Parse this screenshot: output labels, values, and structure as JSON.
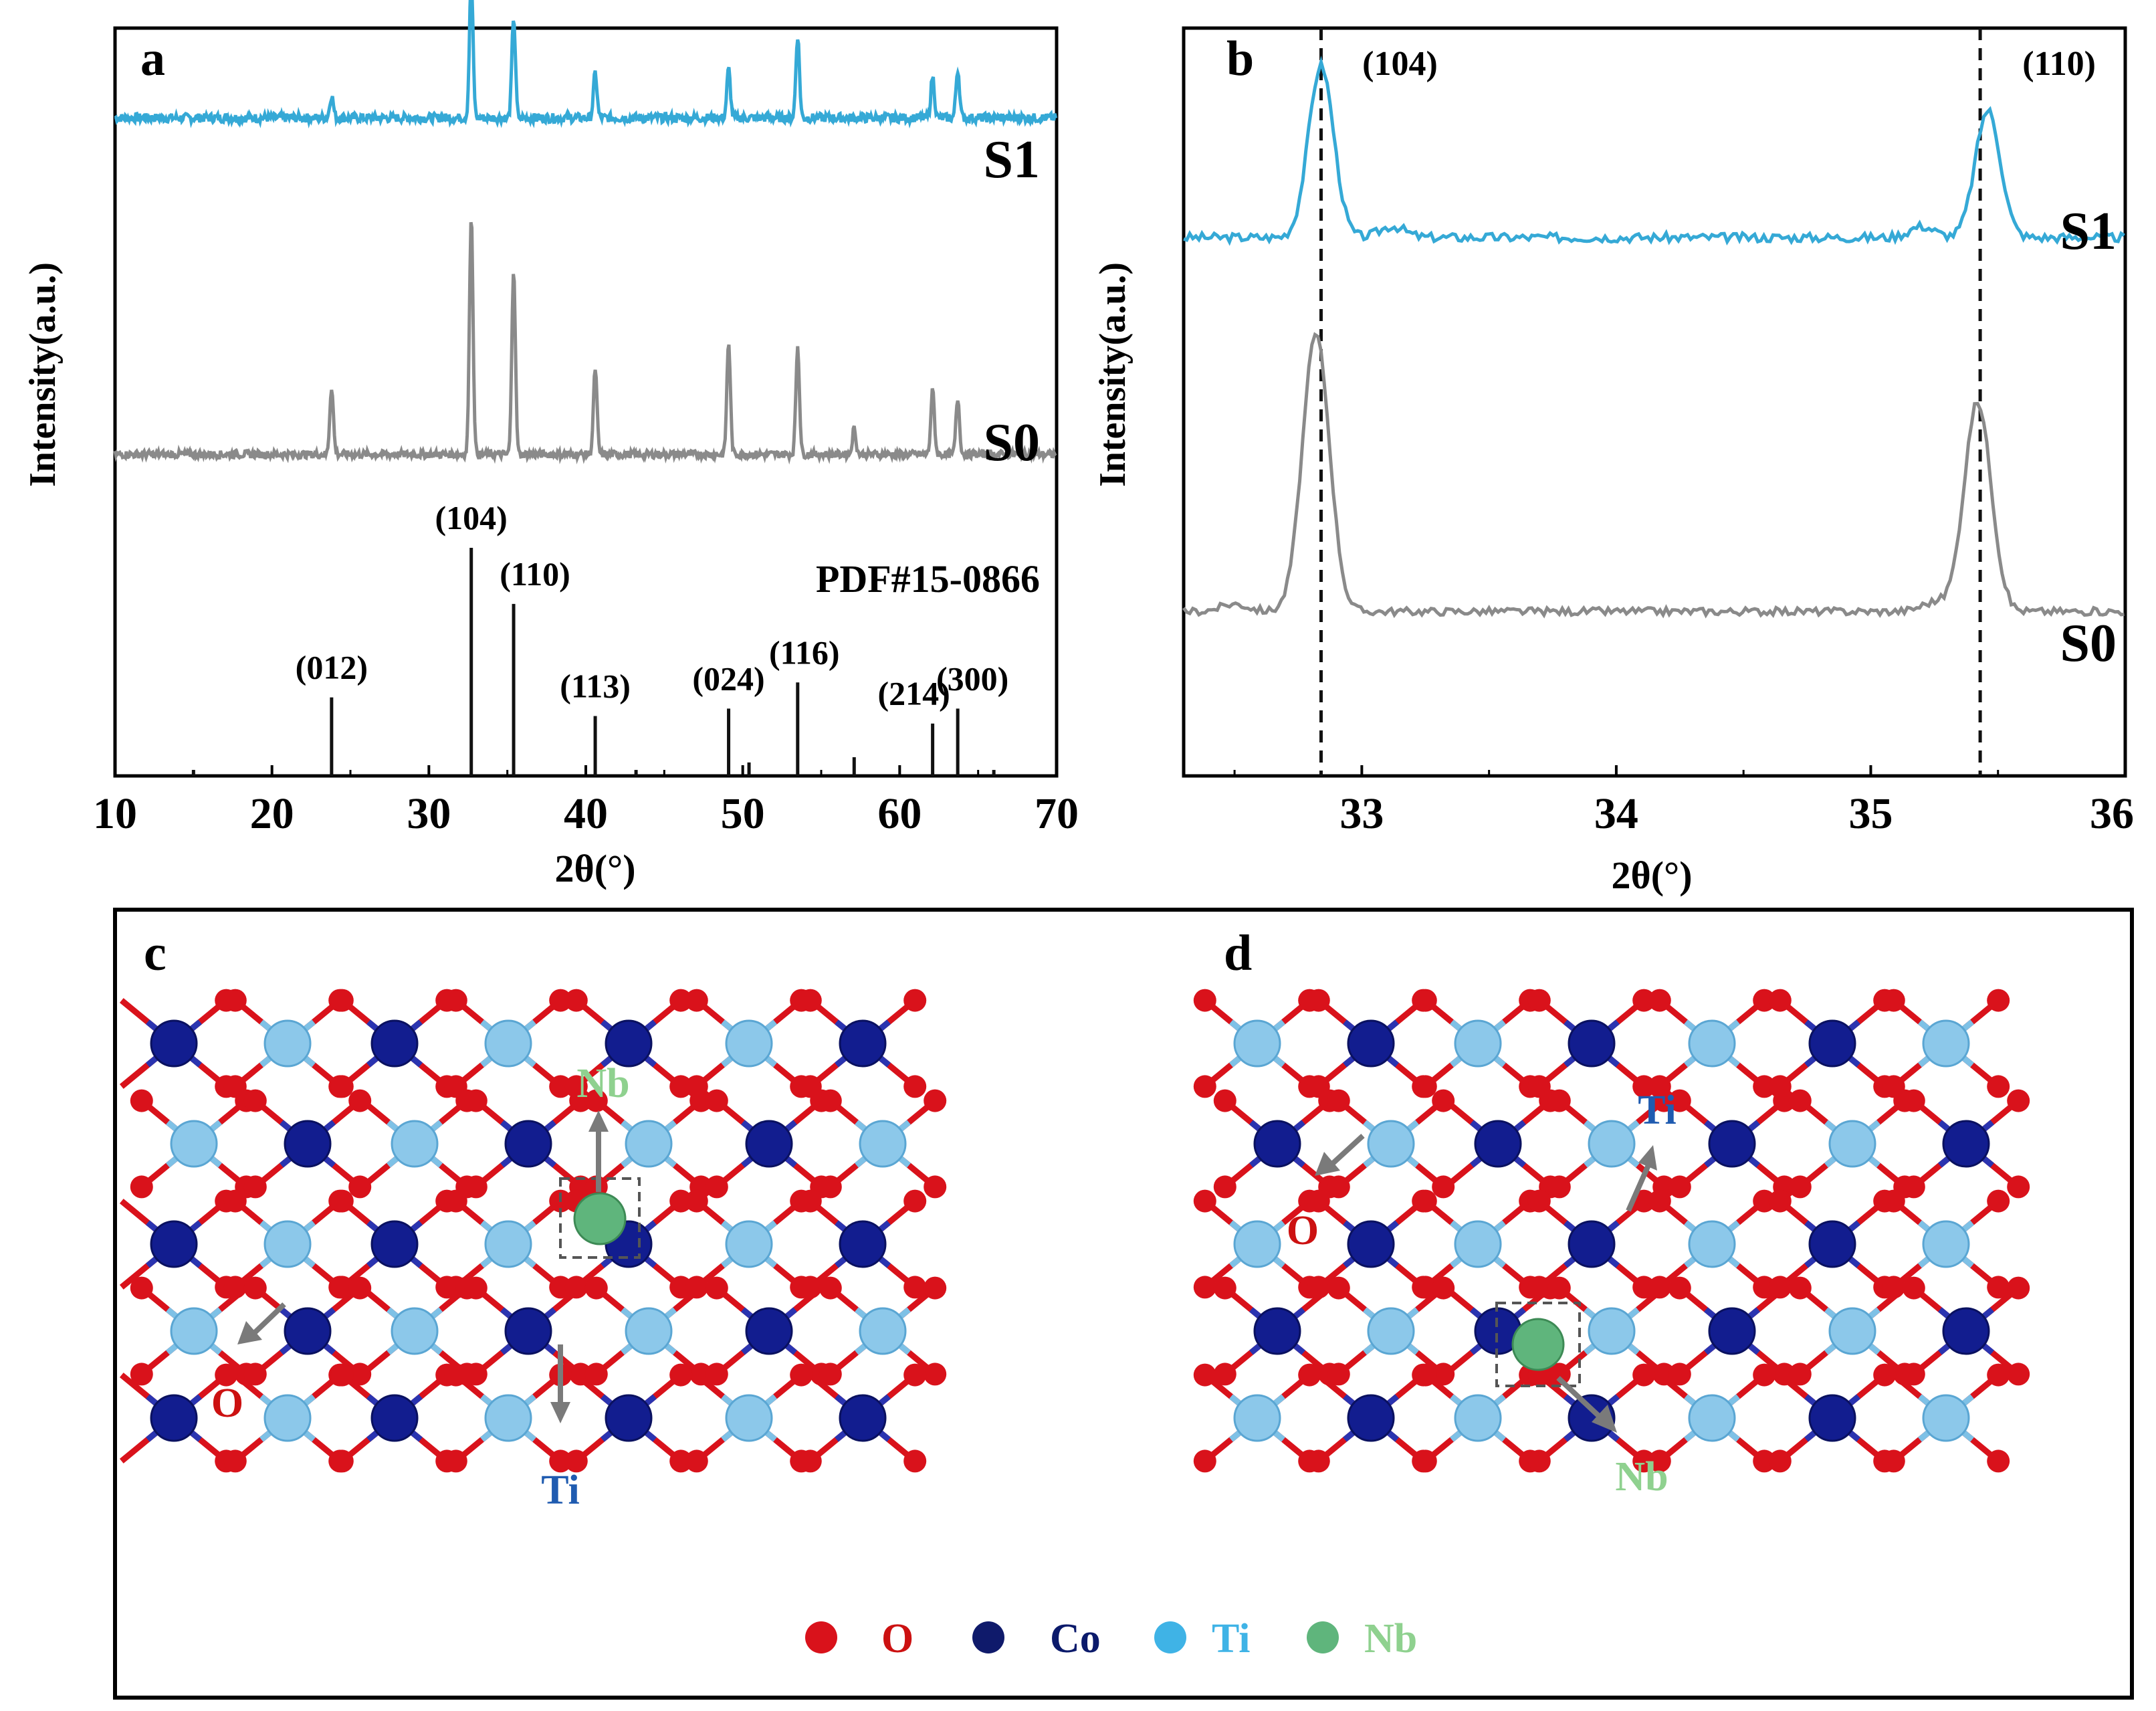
{
  "colors": {
    "s1": "#35a9d6",
    "s0": "#8a8a8a",
    "ref": "#111111",
    "oxygen": "#d9121b",
    "cobalt": "#0f1a8c",
    "titanium": "#7ec1e6",
    "niobium": "#5fb57c",
    "arrow": "#7a7a7a",
    "nb_text": "#8fd18f",
    "ti_text": "#1f5bb0",
    "o_text": "#cc1111",
    "legend_co_text": "#0b1a6b",
    "legend_ti_text": "#3fb3e6",
    "legend_nb_text": "#8fd18f"
  },
  "panels": {
    "a": {
      "label": "a"
    },
    "b": {
      "label": "b"
    },
    "c": {
      "label": "c",
      "annotations": {
        "nb": "Nb",
        "ti": "Ti",
        "o": "O"
      }
    },
    "d": {
      "label": "d",
      "annotations": {
        "nb": "Nb",
        "ti": "Ti",
        "o": "O"
      }
    },
    "legend": {
      "o": "O",
      "co": "Co",
      "ti": "Ti",
      "nb": "Nb"
    }
  },
  "chart_data": [
    {
      "type": "line",
      "panel": "a",
      "title": "",
      "xlabel": "2θ(°)",
      "ylabel": "Intensity(a.u.)",
      "xlim": [
        10,
        70
      ],
      "xticks": [
        10,
        20,
        30,
        40,
        50,
        60,
        70
      ],
      "ylim": [
        0,
        100
      ],
      "series": [
        {
          "name": "S1",
          "baseline": 88,
          "peaks": [
            [
              23.8,
              3
            ],
            [
              32.7,
              18.5
            ],
            [
              35.4,
              13.5
            ],
            [
              40.6,
              6
            ],
            [
              49.1,
              6.5
            ],
            [
              53.5,
              11
            ],
            [
              62.1,
              5.5
            ],
            [
              63.7,
              6.5
            ]
          ]
        },
        {
          "name": "S0",
          "baseline": 43,
          "peaks": [
            [
              23.8,
              9
            ],
            [
              32.7,
              32
            ],
            [
              35.4,
              25
            ],
            [
              40.6,
              11.5
            ],
            [
              49.1,
              15
            ],
            [
              53.5,
              14.5
            ],
            [
              57.1,
              3.5
            ],
            [
              62.1,
              8.5
            ],
            [
              63.7,
              7.5
            ]
          ]
        },
        {
          "name": "PDF#15-0866",
          "type": "stick",
          "sticks": [
            [
              23.8,
              10.5
            ],
            [
              32.7,
              30.5
            ],
            [
              35.4,
              23
            ],
            [
              40.6,
              8
            ],
            [
              49.1,
              9
            ],
            [
              50.4,
              1.8
            ],
            [
              53.5,
              12.5
            ],
            [
              57.1,
              2.5
            ],
            [
              62.1,
              7
            ],
            [
              63.7,
              9
            ],
            [
              15.0,
              0.8
            ],
            [
              43.2,
              0.8
            ],
            [
              66.0,
              0.8
            ]
          ]
        }
      ],
      "peak_labels": [
        {
          "text": "(012)",
          "x": 23.8
        },
        {
          "text": "(104)",
          "x": 32.7
        },
        {
          "text": "(110)",
          "x": 35.4
        },
        {
          "text": "(113)",
          "x": 40.6
        },
        {
          "text": "(024)",
          "x": 49.1
        },
        {
          "text": "(116)",
          "x": 53.5
        },
        {
          "text": "(214)",
          "x": 62.1
        },
        {
          "text": "(300)",
          "x": 63.7
        }
      ],
      "reference_label": "PDF#15-0866",
      "series_labels": {
        "s1": "S1",
        "s0": "S0"
      }
    },
    {
      "type": "line",
      "panel": "b",
      "title": "",
      "xlabel": "2θ(°)",
      "ylabel": "Intensity(a.u.)",
      "xlim": [
        32.3,
        36
      ],
      "xticks": [
        33,
        34,
        35,
        36
      ],
      "ylim": [
        0,
        100
      ],
      "series": [
        {
          "name": "S1",
          "baseline": 72,
          "peaks": [
            [
              32.84,
              23
            ],
            [
              35.46,
              17
            ]
          ]
        },
        {
          "name": "S0",
          "baseline": 22,
          "peaks": [
            [
              32.82,
              37
            ],
            [
              35.42,
              28
            ]
          ]
        }
      ],
      "reference_lines": [
        {
          "x": 32.84,
          "label": "(104)"
        },
        {
          "x": 35.43,
          "label": "(110)"
        }
      ],
      "series_labels": {
        "s1": "S1",
        "s0": "S0"
      }
    }
  ]
}
